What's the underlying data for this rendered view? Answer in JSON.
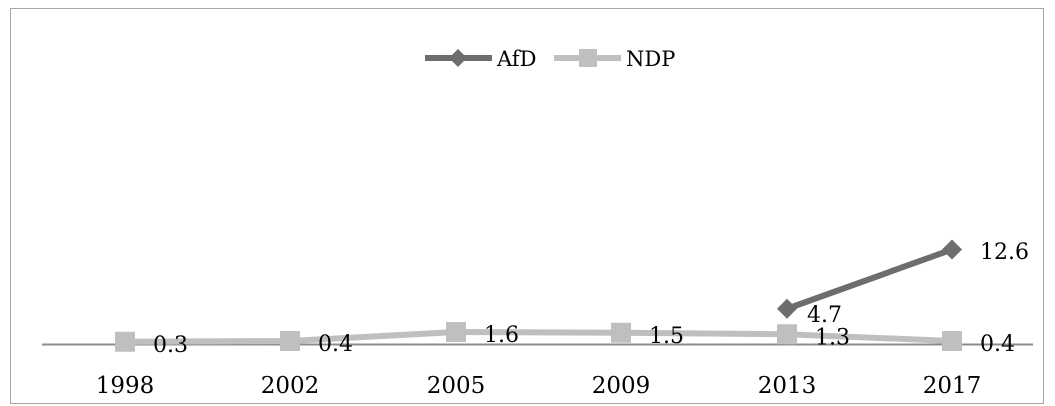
{
  "chart_data": {
    "type": "line",
    "title": "",
    "xlabel": "",
    "ylabel": "",
    "categories": [
      "1998",
      "2002",
      "2005",
      "2009",
      "2013",
      "2017"
    ],
    "series": [
      {
        "name": "AfD",
        "values": [
          null,
          null,
          null,
          null,
          4.7,
          12.6
        ],
        "labels": [
          "",
          "",
          "",
          "",
          "4.7",
          "12.6"
        ],
        "color": "#6d6d6d",
        "marker": "diamond"
      },
      {
        "name": "NDP",
        "values": [
          0.3,
          0.4,
          1.6,
          1.5,
          1.3,
          0.4
        ],
        "labels": [
          "0.3",
          "0.4",
          "1.6",
          "1.5",
          "1.3",
          "0.4"
        ],
        "color": "#bfbfbf",
        "marker": "square"
      }
    ],
    "ylim": [
      0,
      35
    ],
    "grid": false,
    "legend": "top-center"
  }
}
